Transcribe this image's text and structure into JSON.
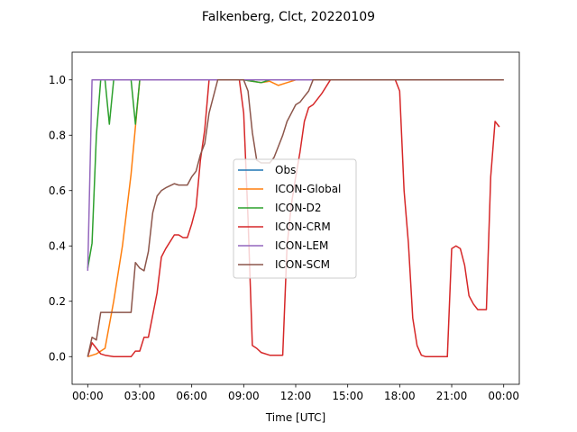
{
  "chart_data": {
    "type": "line",
    "title": "Falkenberg, Clct, 20220109",
    "xlabel": "Time [UTC]",
    "ylabel": "",
    "xlim": [
      -0.9,
      24.9
    ],
    "ylim": [
      -0.1,
      1.1
    ],
    "xticks": [
      0,
      3,
      6,
      9,
      12,
      15,
      18,
      21,
      24
    ],
    "xtick_labels": [
      "00:00",
      "03:00",
      "06:00",
      "09:00",
      "12:00",
      "15:00",
      "18:00",
      "21:00",
      "00:00"
    ],
    "yticks": [
      0.0,
      0.2,
      0.4,
      0.6,
      0.8,
      1.0
    ],
    "ytick_labels": [
      "0.0",
      "0.2",
      "0.4",
      "0.6",
      "0.8",
      "1.0"
    ],
    "legend_position": "center",
    "series": [
      {
        "name": "Obs",
        "color": "#1f77b4",
        "x": [],
        "y": []
      },
      {
        "name": "ICON-Global",
        "color": "#ff7f0e",
        "x": [
          0,
          0.5,
          1,
          1.5,
          2,
          2.5,
          2.75,
          3,
          3.5,
          4,
          9,
          9.5,
          10,
          10.5,
          11,
          11.5,
          12,
          12.5,
          13,
          14,
          24
        ],
        "y": [
          0,
          0.01,
          0.03,
          0.2,
          0.4,
          0.66,
          0.83,
          1.0,
          1.0,
          1.0,
          1.0,
          0.995,
          0.99,
          0.995,
          0.98,
          0.99,
          1.0,
          1.0,
          1.0,
          1.0,
          1.0
        ]
      },
      {
        "name": "ICON-D2",
        "color": "#2ca02c",
        "x": [
          0,
          0.25,
          0.5,
          0.75,
          1.0,
          1.25,
          1.5,
          2.0,
          2.5,
          2.75,
          3.0,
          4,
          9,
          9.5,
          10,
          10.5,
          11,
          24
        ],
        "y": [
          0.32,
          0.41,
          0.8,
          1.0,
          1.0,
          0.84,
          1.0,
          1.0,
          1.0,
          0.84,
          1.0,
          1.0,
          1.0,
          0.995,
          0.99,
          1.0,
          1.0,
          1.0
        ]
      },
      {
        "name": "ICON-CRM",
        "color": "#d62728",
        "x": [
          0,
          0.25,
          0.5,
          0.75,
          1.0,
          1.5,
          2.0,
          2.5,
          2.75,
          3.0,
          3.25,
          3.5,
          4.0,
          4.25,
          4.5,
          5.0,
          5.25,
          5.5,
          5.75,
          6.0,
          6.25,
          6.5,
          6.75,
          7.0,
          7.5,
          8.0,
          8.5,
          8.75,
          9.0,
          9.25,
          9.5,
          9.75,
          10.0,
          10.5,
          11.0,
          11.25,
          11.5,
          11.75,
          12.0,
          12.25,
          12.5,
          12.75,
          13.0,
          13.5,
          14,
          14.5,
          17.5,
          17.75,
          18.0,
          18.25,
          18.5,
          18.75,
          19.0,
          19.25,
          19.5,
          20.0,
          20.5,
          20.75,
          21.0,
          21.25,
          21.5,
          21.75,
          22.0,
          22.25,
          22.5,
          22.75,
          23.0,
          23.25,
          23.5,
          23.75
        ],
        "y": [
          0,
          0.05,
          0.03,
          0.01,
          0.005,
          0.0,
          0.0,
          0.0,
          0.02,
          0.02,
          0.07,
          0.07,
          0.23,
          0.36,
          0.39,
          0.44,
          0.44,
          0.43,
          0.43,
          0.48,
          0.54,
          0.71,
          0.82,
          1.0,
          1.0,
          1.0,
          1.0,
          1.0,
          0.88,
          0.5,
          0.04,
          0.03,
          0.015,
          0.005,
          0.005,
          0.005,
          0.4,
          0.55,
          0.65,
          0.74,
          0.85,
          0.9,
          0.91,
          0.95,
          1.0,
          1.0,
          1.0,
          1.0,
          0.96,
          0.6,
          0.41,
          0.14,
          0.04,
          0.005,
          0.0,
          0.0,
          0.0,
          0.0,
          0.39,
          0.4,
          0.39,
          0.33,
          0.22,
          0.19,
          0.17,
          0.17,
          0.17,
          0.65,
          0.85,
          0.83
        ]
      },
      {
        "name": "ICON-LEM",
        "color": "#9467bd",
        "x": [
          0,
          0.25,
          0.5,
          24
        ],
        "y": [
          0.31,
          1.0,
          1.0,
          1.0
        ]
      },
      {
        "name": "ICON-SCM",
        "color": "#8c564b",
        "x": [
          0,
          0.25,
          0.5,
          0.75,
          1.0,
          1.5,
          2.0,
          2.5,
          2.75,
          3.0,
          3.25,
          3.5,
          3.75,
          4.0,
          4.25,
          4.5,
          5.0,
          5.25,
          5.5,
          5.75,
          6.0,
          6.25,
          6.5,
          6.75,
          7.0,
          7.5,
          8.0,
          8.5,
          8.75,
          9.0,
          9.25,
          9.5,
          9.75,
          10.0,
          10.25,
          10.5,
          10.75,
          11.0,
          11.25,
          11.5,
          11.75,
          12.0,
          12.25,
          12.5,
          12.75,
          13.0,
          13.5,
          14,
          24
        ],
        "y": [
          0,
          0.07,
          0.06,
          0.16,
          0.16,
          0.16,
          0.16,
          0.16,
          0.34,
          0.32,
          0.31,
          0.38,
          0.52,
          0.58,
          0.6,
          0.61,
          0.625,
          0.62,
          0.62,
          0.62,
          0.65,
          0.67,
          0.73,
          0.77,
          0.88,
          1.0,
          1.0,
          1.0,
          1.0,
          1.0,
          0.96,
          0.81,
          0.71,
          0.7,
          0.7,
          0.7,
          0.72,
          0.76,
          0.8,
          0.85,
          0.88,
          0.91,
          0.92,
          0.94,
          0.96,
          1.0,
          1.0,
          1.0,
          1.0
        ]
      }
    ]
  }
}
